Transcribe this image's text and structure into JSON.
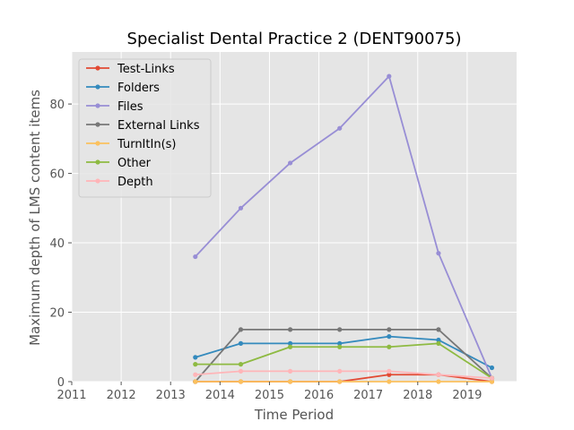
{
  "chart_data": {
    "type": "line",
    "title": "Specialist Dental Practice 2 (DENT90075)",
    "xlabel": "Time Period",
    "ylabel": "Maximum depth of LMS content items",
    "xlim": [
      2011,
      2020.0
    ],
    "ylim": [
      0,
      95
    ],
    "xticks": [
      2011,
      2012,
      2013,
      2014,
      2015,
      2016,
      2017,
      2018,
      2019
    ],
    "xtick_labels": [
      "2011",
      "2012",
      "2013",
      "2014",
      "2015",
      "2016",
      "2017",
      "2018",
      "2019"
    ],
    "yticks": [
      0,
      20,
      40,
      60,
      80
    ],
    "ytick_labels": [
      "0",
      "20",
      "40",
      "60",
      "80"
    ],
    "grid": true,
    "legend_position": "top-left",
    "x": [
      2013.5,
      2014.42,
      2015.42,
      2016.42,
      2017.42,
      2018.42,
      2019.5
    ],
    "series": [
      {
        "name": "Test-Links",
        "color": "#E24A33",
        "values": [
          0,
          0,
          0,
          0,
          2,
          2,
          0
        ]
      },
      {
        "name": "Folders",
        "color": "#348ABD",
        "values": [
          7,
          11,
          11,
          11,
          13,
          12,
          4
        ]
      },
      {
        "name": "Files",
        "color": "#988ED5",
        "values": [
          36,
          50,
          63,
          73,
          88,
          37,
          1
        ]
      },
      {
        "name": "External Links",
        "color": "#777777",
        "values": [
          0,
          15,
          15,
          15,
          15,
          15,
          1
        ]
      },
      {
        "name": "TurnItIn(s)",
        "color": "#FBC15E",
        "values": [
          0,
          0,
          0,
          0,
          0,
          0,
          0
        ]
      },
      {
        "name": "Other",
        "color": "#8EBA42",
        "values": [
          5,
          5,
          10,
          10,
          10,
          11,
          1
        ]
      },
      {
        "name": "Depth",
        "color": "#FFB5B8",
        "values": [
          2,
          3,
          3,
          3,
          3,
          2,
          1
        ]
      }
    ]
  }
}
